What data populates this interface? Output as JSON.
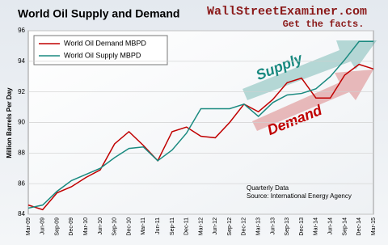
{
  "chart_data": {
    "type": "line",
    "title": "World Oil Supply and Demand",
    "watermark": "WallStreetExaminer.com",
    "tagline": "Get the facts.",
    "ylabel": "Million Barrels Per Day",
    "categories": [
      "Mar-09",
      "Jun-09",
      "Sep-09",
      "Dec-09",
      "Mar-10",
      "Jun-10",
      "Sep-10",
      "Dec-10",
      "Mar-11",
      "Jun-11",
      "Sep-11",
      "Dec-11",
      "Mar-12",
      "Jun-12",
      "Sep-12",
      "Dec-12",
      "Mar-13",
      "Jun-13",
      "Sep-13",
      "Dec-13",
      "Mar-14",
      "Jun-14",
      "Sep-14",
      "Dec-14",
      "Mar-15"
    ],
    "series": [
      {
        "name": "World Oil Demand MBPD",
        "color": "#c00000",
        "values": [
          84.6,
          84.3,
          85.4,
          85.8,
          86.4,
          86.9,
          88.6,
          89.4,
          88.5,
          87.5,
          89.4,
          89.7,
          89.1,
          89.0,
          90.0,
          91.2,
          90.7,
          91.5,
          92.6,
          92.9,
          91.6,
          91.6,
          93.1,
          93.8,
          93.5
        ]
      },
      {
        "name": "World Oil Supply MBPD",
        "color": "#1a8a80",
        "values": [
          84.4,
          84.6,
          85.5,
          86.2,
          86.6,
          87.0,
          87.7,
          88.3,
          88.4,
          87.5,
          88.2,
          89.3,
          90.9,
          90.9,
          90.9,
          91.2,
          90.4,
          91.3,
          91.8,
          91.9,
          92.2,
          93.0,
          94.1,
          95.3,
          95.3
        ]
      }
    ],
    "ylim": [
      84,
      96
    ],
    "yticks": [
      84,
      86,
      88,
      90,
      92,
      94,
      96
    ],
    "grid": true,
    "annotations": [
      "Supply",
      "Demand",
      "Quarterly Data",
      "Source: International Energy Agency"
    ]
  }
}
